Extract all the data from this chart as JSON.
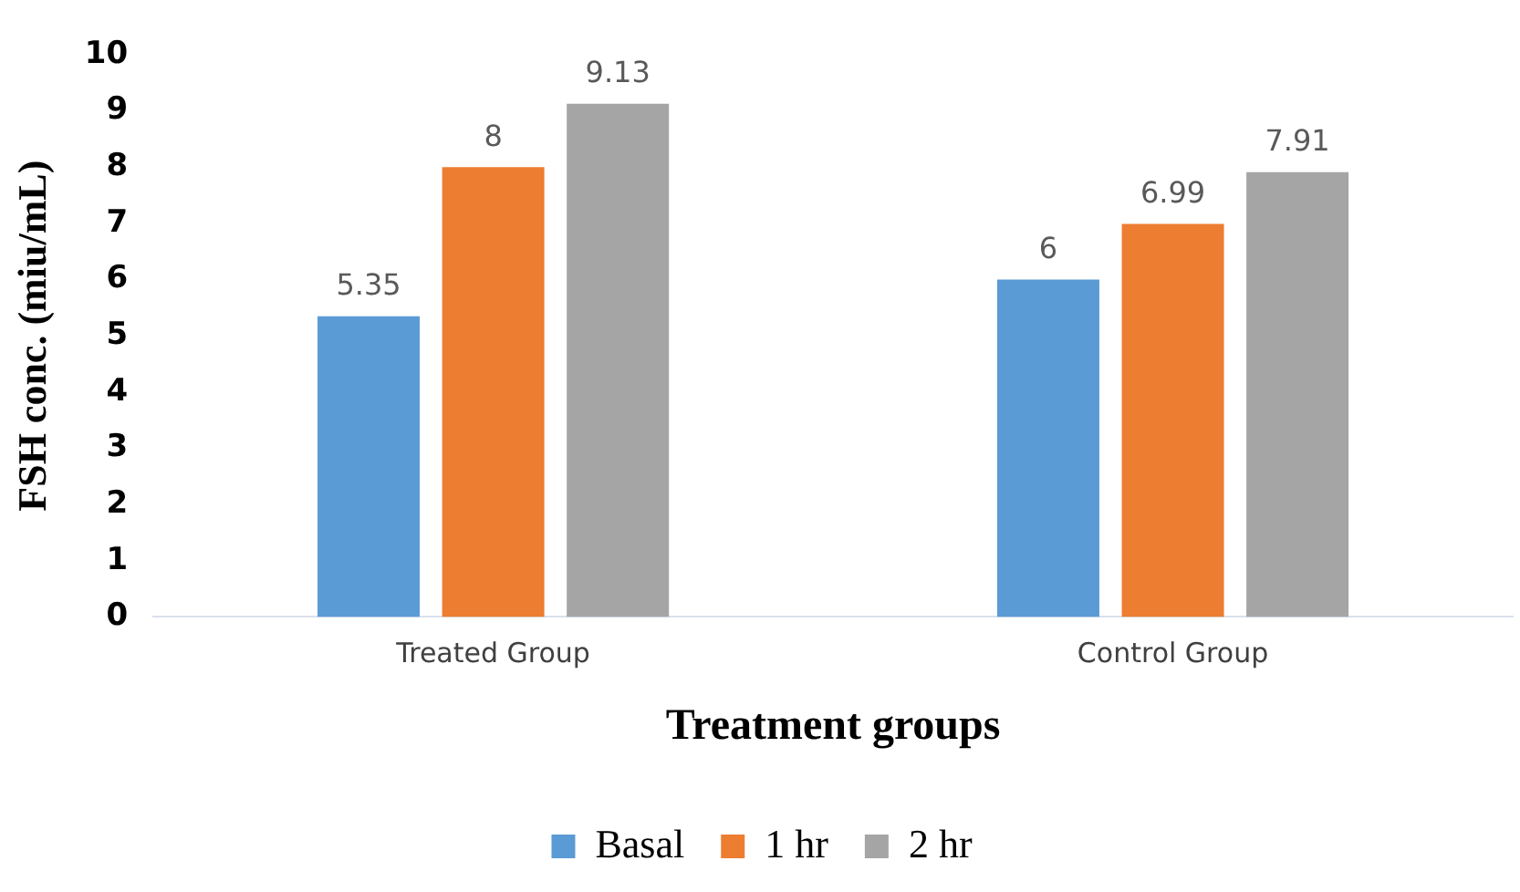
{
  "chart_data": {
    "type": "bar",
    "xlabel": "Treatment groups",
    "ylabel": "FSH conc. (miu/mL)",
    "categories": [
      "Treated Group",
      "Control Group"
    ],
    "series": [
      {
        "name": "Basal",
        "color": "#5b9bd5",
        "values": [
          5.35,
          6
        ]
      },
      {
        "name": "1 hr",
        "color": "#ed7d31",
        "values": [
          8,
          6.99
        ]
      },
      {
        "name": "2 hr",
        "color": "#a5a5a5",
        "values": [
          9.13,
          7.91
        ]
      }
    ],
    "ylim": [
      0,
      10
    ],
    "yticks": [
      0,
      1,
      2,
      3,
      4,
      5,
      6,
      7,
      8,
      9,
      10
    ],
    "grid": false,
    "legend": "bottom",
    "data_labels": true
  }
}
